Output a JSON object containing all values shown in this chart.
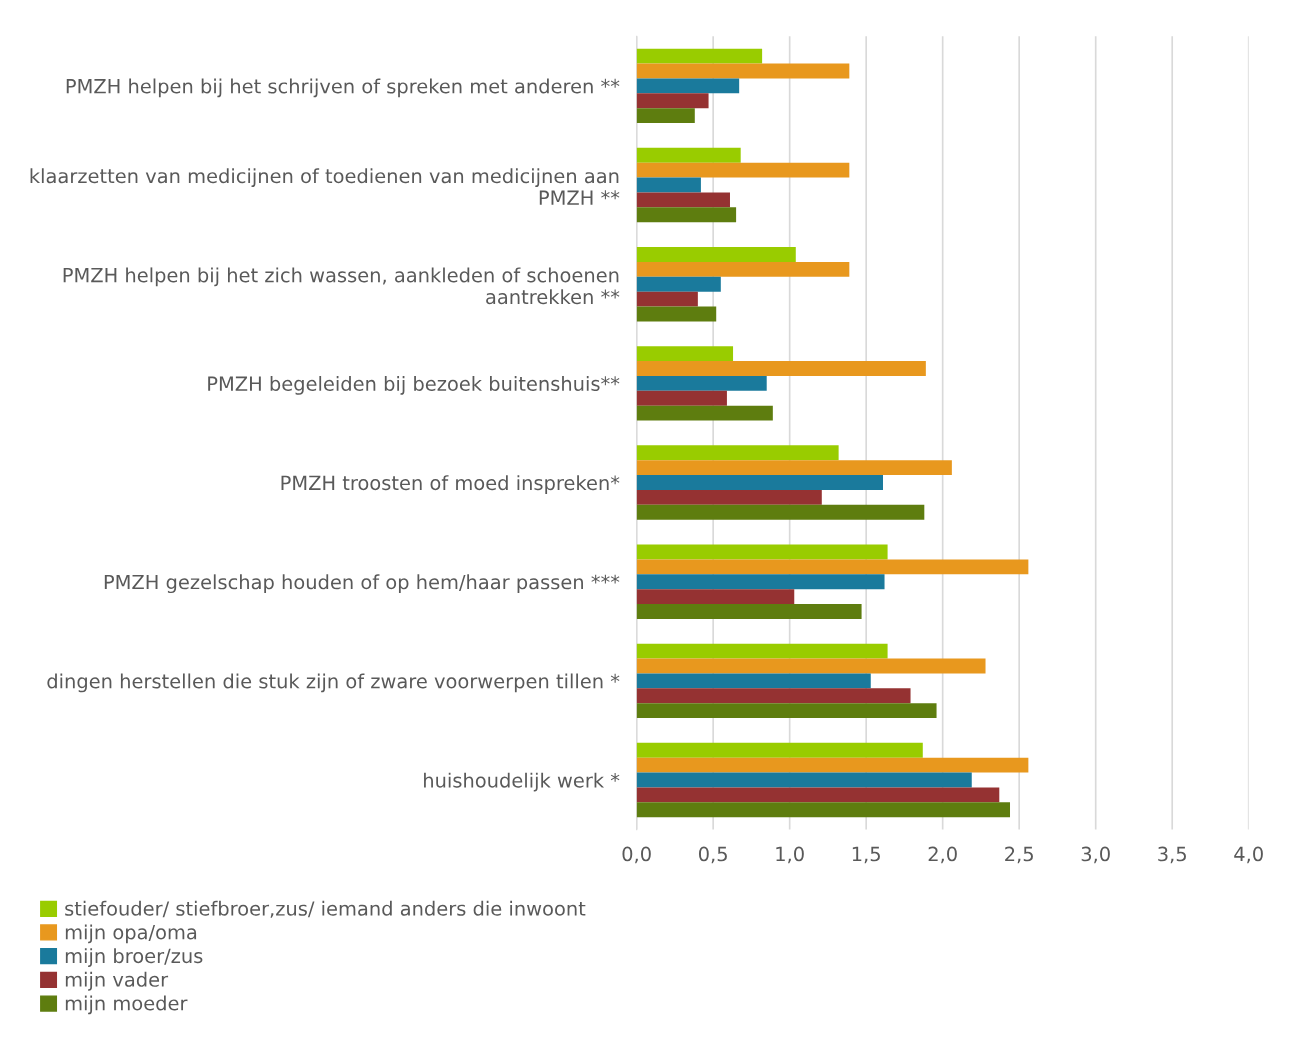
{
  "chart_data": {
    "type": "bar",
    "orientation": "horizontal",
    "categories": [
      "PMZH helpen bij het schrijven of spreken met anderen **",
      "klaarzetten van medicijnen of toedienen van medicijnen aan PMZH **",
      "PMZH helpen bij het zich wassen, aankleden of schoenen aantrekken **",
      "PMZH begeleiden bij bezoek buitenshuis**",
      "PMZH troosten of moed inspreken*",
      "PMZH gezelschap houden of op hem/haar passen ***",
      "dingen herstellen die stuk zijn of zware voorwerpen tillen *",
      "huishoudelijk werk *"
    ],
    "series": [
      {
        "name": "stiefouder/ stiefbroer,zus/ iemand anders die inwoont",
        "color": "#99cc00",
        "values": [
          0.82,
          0.68,
          1.04,
          0.63,
          1.32,
          1.64,
          1.64,
          1.87
        ]
      },
      {
        "name": "mijn opa/oma",
        "color": "#e8981e",
        "values": [
          1.39,
          1.39,
          1.39,
          1.89,
          2.06,
          2.56,
          2.28,
          2.56
        ]
      },
      {
        "name": "mijn broer/zus",
        "color": "#1a7a9c",
        "values": [
          0.67,
          0.42,
          0.55,
          0.85,
          1.61,
          1.62,
          1.53,
          2.19
        ]
      },
      {
        "name": "mijn vader",
        "color": "#953232",
        "values": [
          0.47,
          0.61,
          0.4,
          0.59,
          1.21,
          1.03,
          1.79,
          2.37
        ]
      },
      {
        "name": "mijn moeder",
        "color": "#5e7d0f",
        "values": [
          0.38,
          0.65,
          0.52,
          0.89,
          1.88,
          1.47,
          1.96,
          2.44
        ]
      }
    ],
    "xlim": [
      0,
      4
    ],
    "xticks": [
      {
        "value": 0,
        "label": "0,0"
      },
      {
        "value": 0.5,
        "label": "0,5"
      },
      {
        "value": 1,
        "label": "1,0"
      },
      {
        "value": 1.5,
        "label": "1,5"
      },
      {
        "value": 2,
        "label": "2,0"
      },
      {
        "value": 2.5,
        "label": "2,5"
      },
      {
        "value": 3,
        "label": "3,0"
      },
      {
        "value": 3.5,
        "label": "3,5"
      },
      {
        "value": 4,
        "label": "4,0"
      }
    ],
    "grid": "x",
    "legend": "bottom left"
  }
}
